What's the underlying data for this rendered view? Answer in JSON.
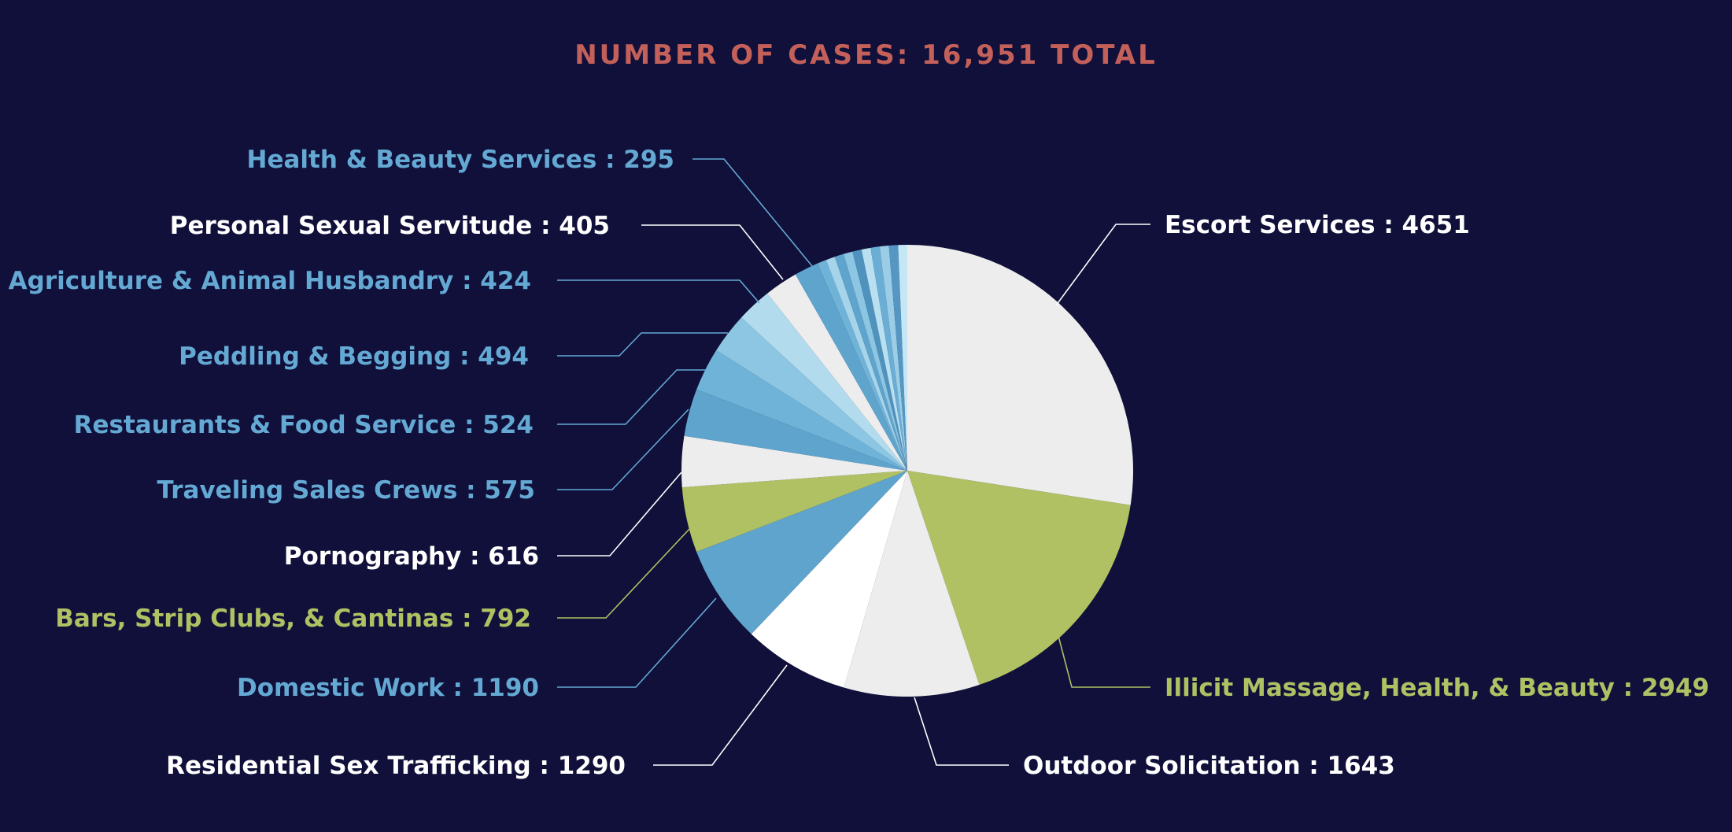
{
  "title": "NUMBER OF CASES: 16,951 TOTAL",
  "colors": {
    "background": "#10103a",
    "title": "#c4605a",
    "white": "#ffffff",
    "blue": "#64a9d3",
    "green": "#afc162"
  },
  "chart_data": {
    "type": "pie",
    "title": "NUMBER OF CASES: 16,951 TOTAL",
    "total": 16951,
    "slices": [
      {
        "label": "Escort Services : 4651",
        "name": "Escort Services",
        "value": 4651,
        "color": "#ededed",
        "label_color": "#ffffff"
      },
      {
        "label": "Illicit Massage, Health, & Beauty : 2949",
        "name": "Illicit Massage, Health, & Beauty",
        "value": 2949,
        "color": "#afc162",
        "label_color": "#afc162"
      },
      {
        "label": "Outdoor Solicitation : 1643",
        "name": "Outdoor Solicitation",
        "value": 1643,
        "color": "#ededed",
        "label_color": "#ffffff"
      },
      {
        "label": "Residential Sex Trafficking : 1290",
        "name": "Residential Sex Trafficking",
        "value": 1290,
        "color": "#ffffff",
        "label_color": "#ffffff"
      },
      {
        "label": "Domestic Work : 1190",
        "name": "Domestic Work",
        "value": 1190,
        "color": "#5fa4cc",
        "label_color": "#64a9d3"
      },
      {
        "label": "Bars, Strip Clubs, & Cantinas : 792",
        "name": "Bars, Strip Clubs, & Cantinas",
        "value": 792,
        "color": "#afc162",
        "label_color": "#afc162"
      },
      {
        "label": "Pornography : 616",
        "name": "Pornography",
        "value": 616,
        "color": "#ededed",
        "label_color": "#ffffff"
      },
      {
        "label": "Traveling Sales Crews : 575",
        "name": "Traveling Sales Crews",
        "value": 575,
        "color": "#5fa4cc",
        "label_color": "#64a9d3"
      },
      {
        "label": "Restaurants & Food Service : 524",
        "name": "Restaurants & Food Service",
        "value": 524,
        "color": "#6fb4d8",
        "label_color": "#64a9d3"
      },
      {
        "label": "Peddling & Begging : 494",
        "name": "Peddling & Begging",
        "value": 494,
        "color": "#8cc6e2",
        "label_color": "#64a9d3"
      },
      {
        "label": "Agriculture & Animal Husbandry : 424",
        "name": "Agriculture & Animal Husbandry",
        "value": 424,
        "color": "#b2dcee",
        "label_color": "#64a9d3"
      },
      {
        "label": "Personal Sexual Servitude : 405",
        "name": "Personal Sexual Servitude",
        "value": 405,
        "color": "#ededed",
        "label_color": "#ffffff"
      },
      {
        "label": "Health & Beauty Services : 295",
        "name": "Health & Beauty Services",
        "value": 295,
        "color": "#5fa4cc",
        "label_color": "#64a9d3"
      }
    ],
    "other_small_slices_value": 1103,
    "other_small_slices_colors": [
      "#6fb4d8",
      "#a6d4ea",
      "#5fa4cc",
      "#8cc6e2",
      "#4f92bd",
      "#b9e0f0",
      "#6aaed6",
      "#9ccde6",
      "#5597c2",
      "#c5e6f4"
    ]
  }
}
